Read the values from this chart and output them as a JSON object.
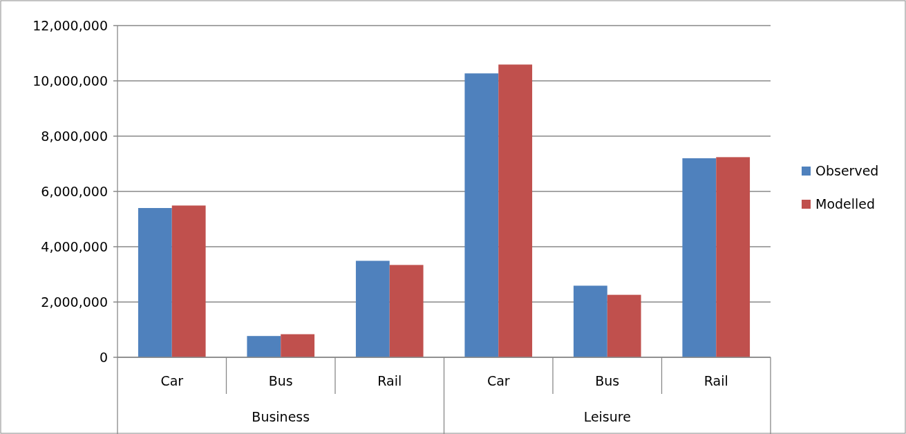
{
  "chart_data": {
    "type": "bar",
    "categories": [
      "Car",
      "Bus",
      "Rail",
      "Car",
      "Bus",
      "Rail"
    ],
    "series": [
      {
        "name": "Observed",
        "color": "#4f81bd",
        "values": [
          5400000,
          770000,
          3490000,
          10270000,
          2590000,
          7200000
        ]
      },
      {
        "name": "Modelled",
        "color": "#c0504d",
        "values": [
          5490000,
          835000,
          3340000,
          10590000,
          2260000,
          7240000
        ]
      }
    ],
    "annotations": [
      "Business",
      "Leisure"
    ],
    "ylim": [
      0,
      12000000
    ],
    "yticks": [
      {
        "value": 0,
        "label": "0"
      },
      {
        "value": 2000000,
        "label": "2,000,000"
      },
      {
        "value": 4000000,
        "label": "4,000,000"
      },
      {
        "value": 6000000,
        "label": "6,000,000"
      },
      {
        "value": 8000000,
        "label": "8,000,000"
      },
      {
        "value": 10000000,
        "label": "10,000,000"
      },
      {
        "value": 12000000,
        "label": "12,000,000"
      }
    ],
    "grid": "y",
    "legend": "right"
  }
}
